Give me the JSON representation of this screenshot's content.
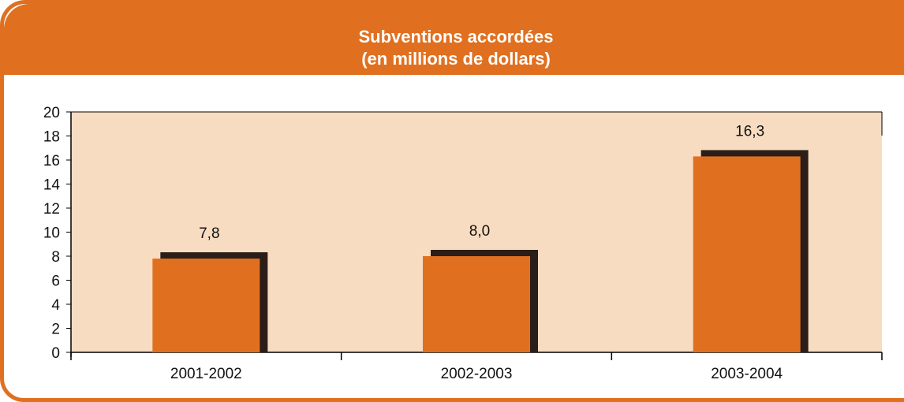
{
  "chart_data": {
    "type": "bar",
    "title": "Subventions accordées",
    "subtitle": "(en millions de dollars)",
    "categories": [
      "2001-2002",
      "2002-2003",
      "2003-2004"
    ],
    "values": [
      7.8,
      8.0,
      16.3
    ],
    "value_labels": [
      "7,8",
      "8,0",
      "16,3"
    ],
    "ylim": [
      0,
      20
    ],
    "yticks": [
      0,
      2,
      4,
      6,
      8,
      10,
      12,
      14,
      16,
      18,
      20
    ],
    "xlabel": "",
    "ylabel": "",
    "grid": false,
    "colors": {
      "bar": "#E07020",
      "bar_shadow": "#2B1E18",
      "plot_background": "#F8DCC2",
      "frame": "#E07020",
      "title_text": "#FFFFFF"
    }
  }
}
